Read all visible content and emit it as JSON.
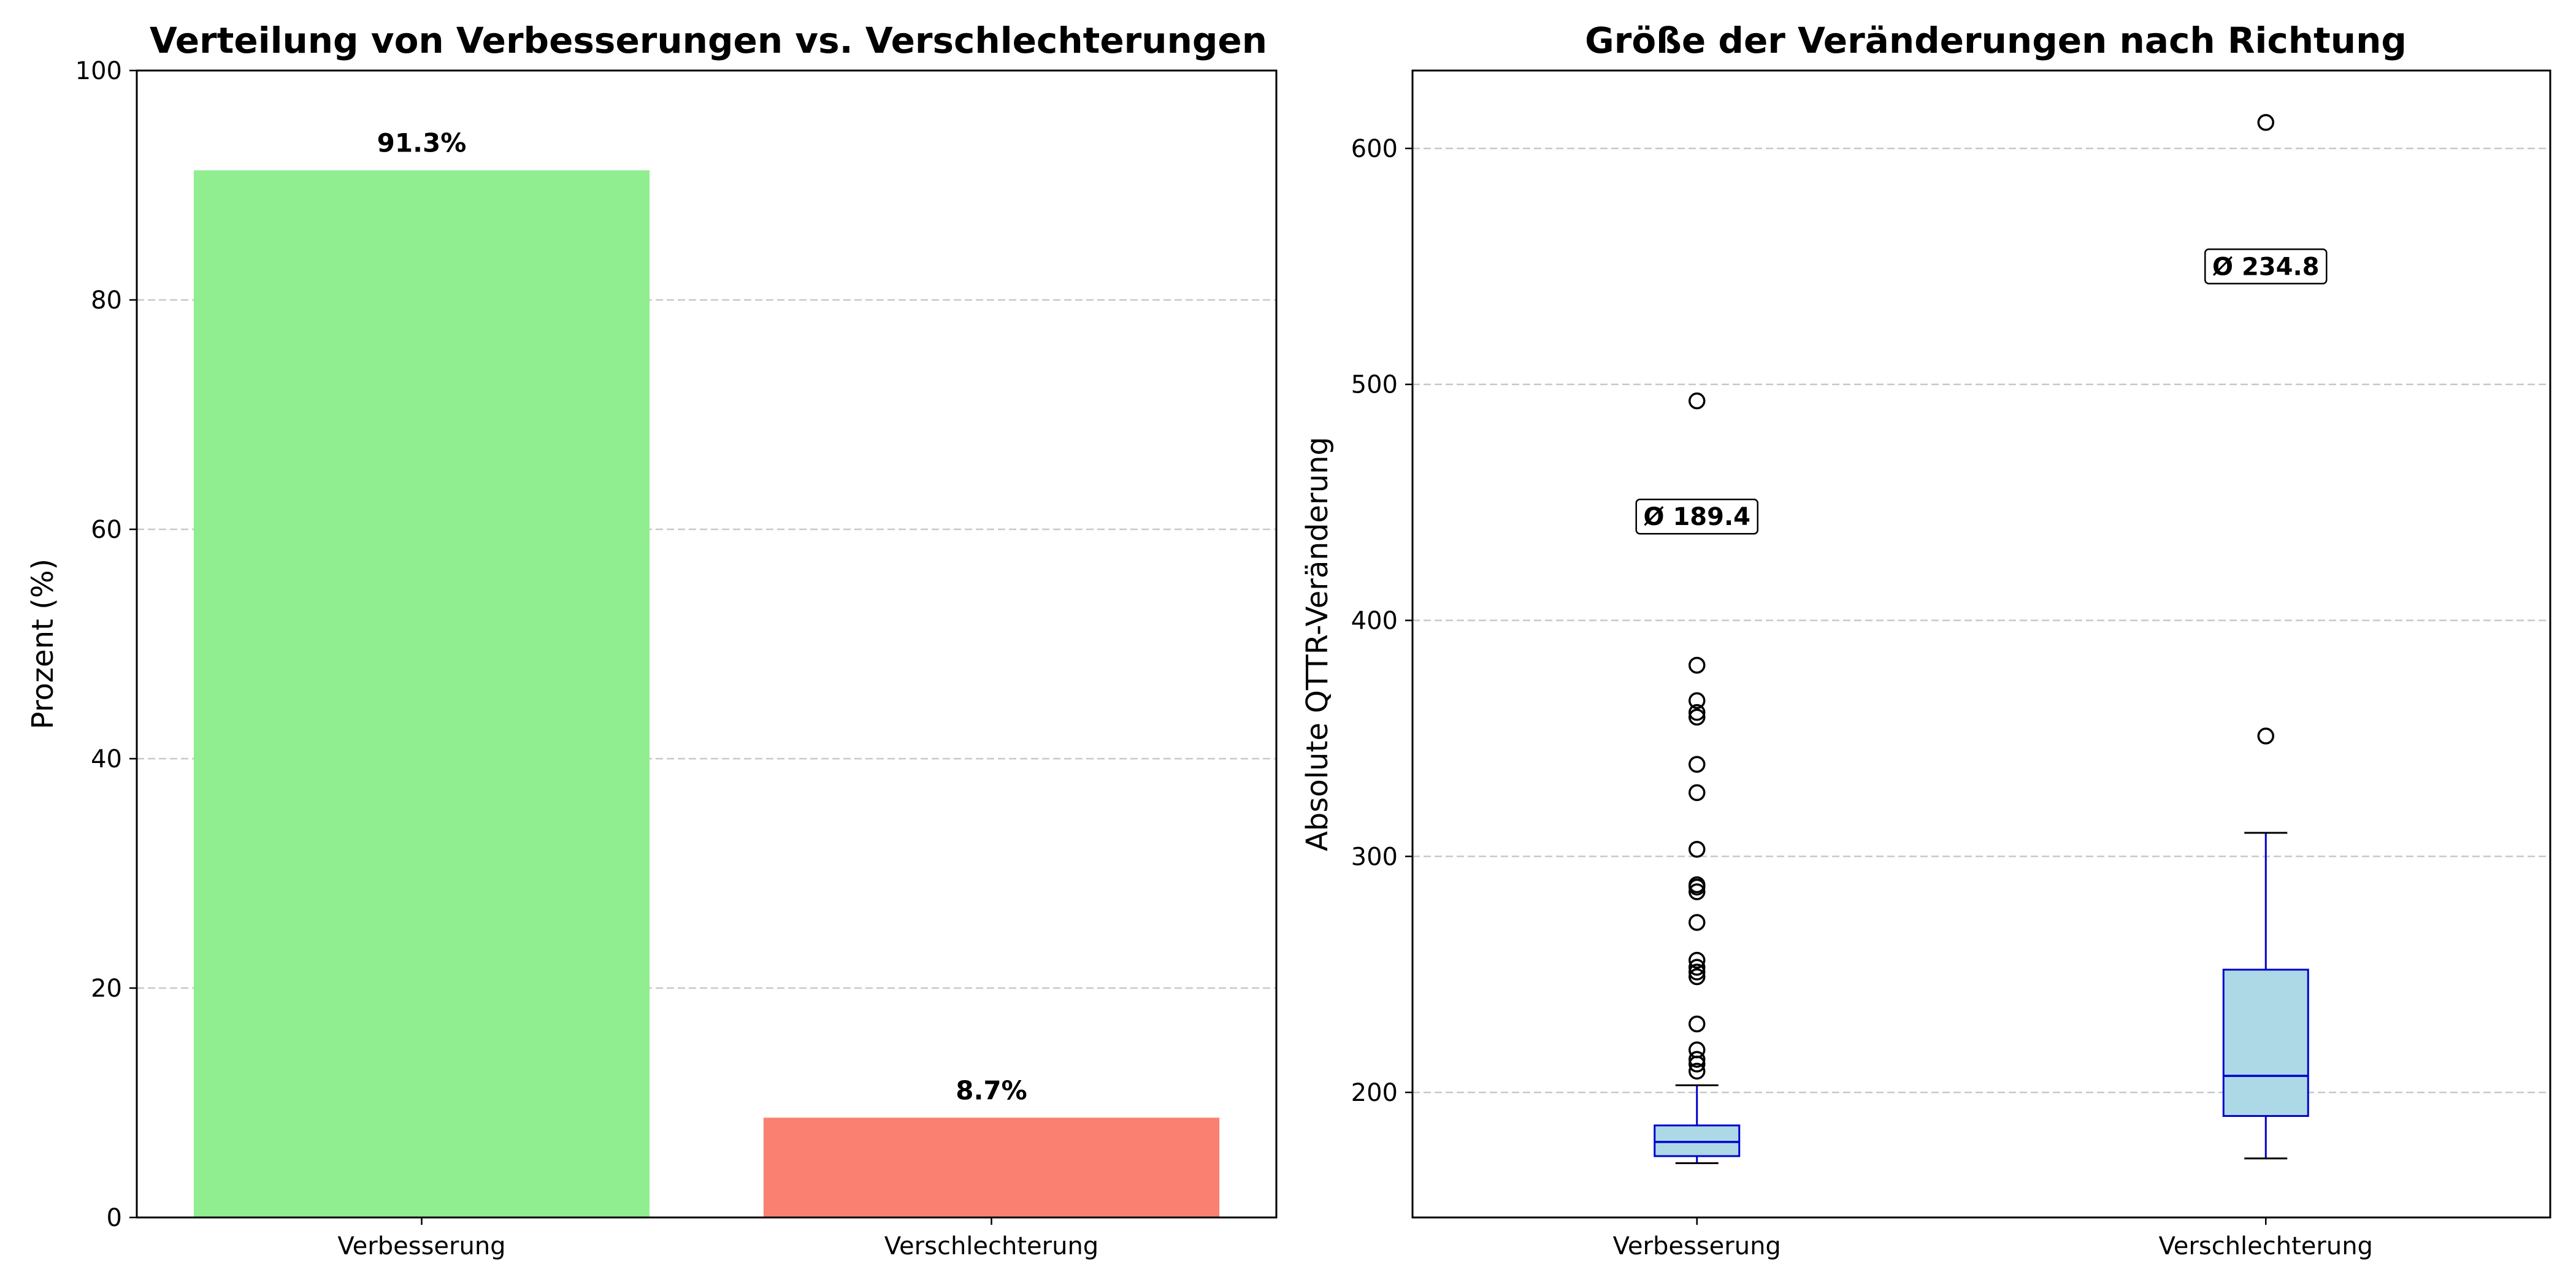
{
  "chart_data": [
    {
      "type": "bar",
      "title": "Verteilung von Verbesserungen vs. Verschlechterungen",
      "xlabel": "",
      "ylabel": "Prozent (%)",
      "categories": [
        "Verbesserung",
        "Verschlechterung"
      ],
      "values": [
        91.3,
        8.7
      ],
      "value_labels": [
        "91.3%",
        "8.7%"
      ],
      "colors": [
        "#90EE90",
        "#FA8072"
      ],
      "ylim": [
        0,
        100
      ],
      "yticks": [
        0,
        20,
        40,
        60,
        80,
        100
      ],
      "ytick_labels": [
        "0",
        "20",
        "40",
        "60",
        "80",
        "100"
      ],
      "grid": "y, dashed"
    },
    {
      "type": "box",
      "title": "Größe der Veränderungen nach Richtung",
      "xlabel": "",
      "ylabel": "Absolute QTTR-Veränderung",
      "categories": [
        "Verbesserung",
        "Verschlechterung"
      ],
      "ylim": [
        147,
        633
      ],
      "yticks": [
        200,
        300,
        400,
        500,
        600
      ],
      "ytick_labels": [
        "200",
        "300",
        "400",
        "500",
        "600"
      ],
      "grid": "y, dashed",
      "box_fill": "#ADD8E6",
      "box_edge": "#0000CD",
      "boxes": [
        {
          "category": "Verbesserung",
          "whisker_low": 170,
          "q1": 173,
          "median": 179,
          "q3": 186,
          "whisker_high": 203,
          "outliers": [
            209,
            212,
            214,
            218,
            229,
            249,
            251,
            253,
            256,
            272,
            285,
            287,
            288,
            303,
            327,
            339,
            359,
            361,
            366,
            381,
            493
          ],
          "mean_label": "Ø 189.4",
          "mean": 189.4,
          "mean_label_position": 444
        },
        {
          "category": "Verschlechterung",
          "whisker_low": 172,
          "q1": 190,
          "median": 207,
          "q3": 252,
          "whisker_high": 310,
          "outliers": [
            351,
            611
          ],
          "mean_label": "Ø 234.8",
          "mean": 234.8,
          "mean_label_position": 550
        }
      ]
    }
  ]
}
